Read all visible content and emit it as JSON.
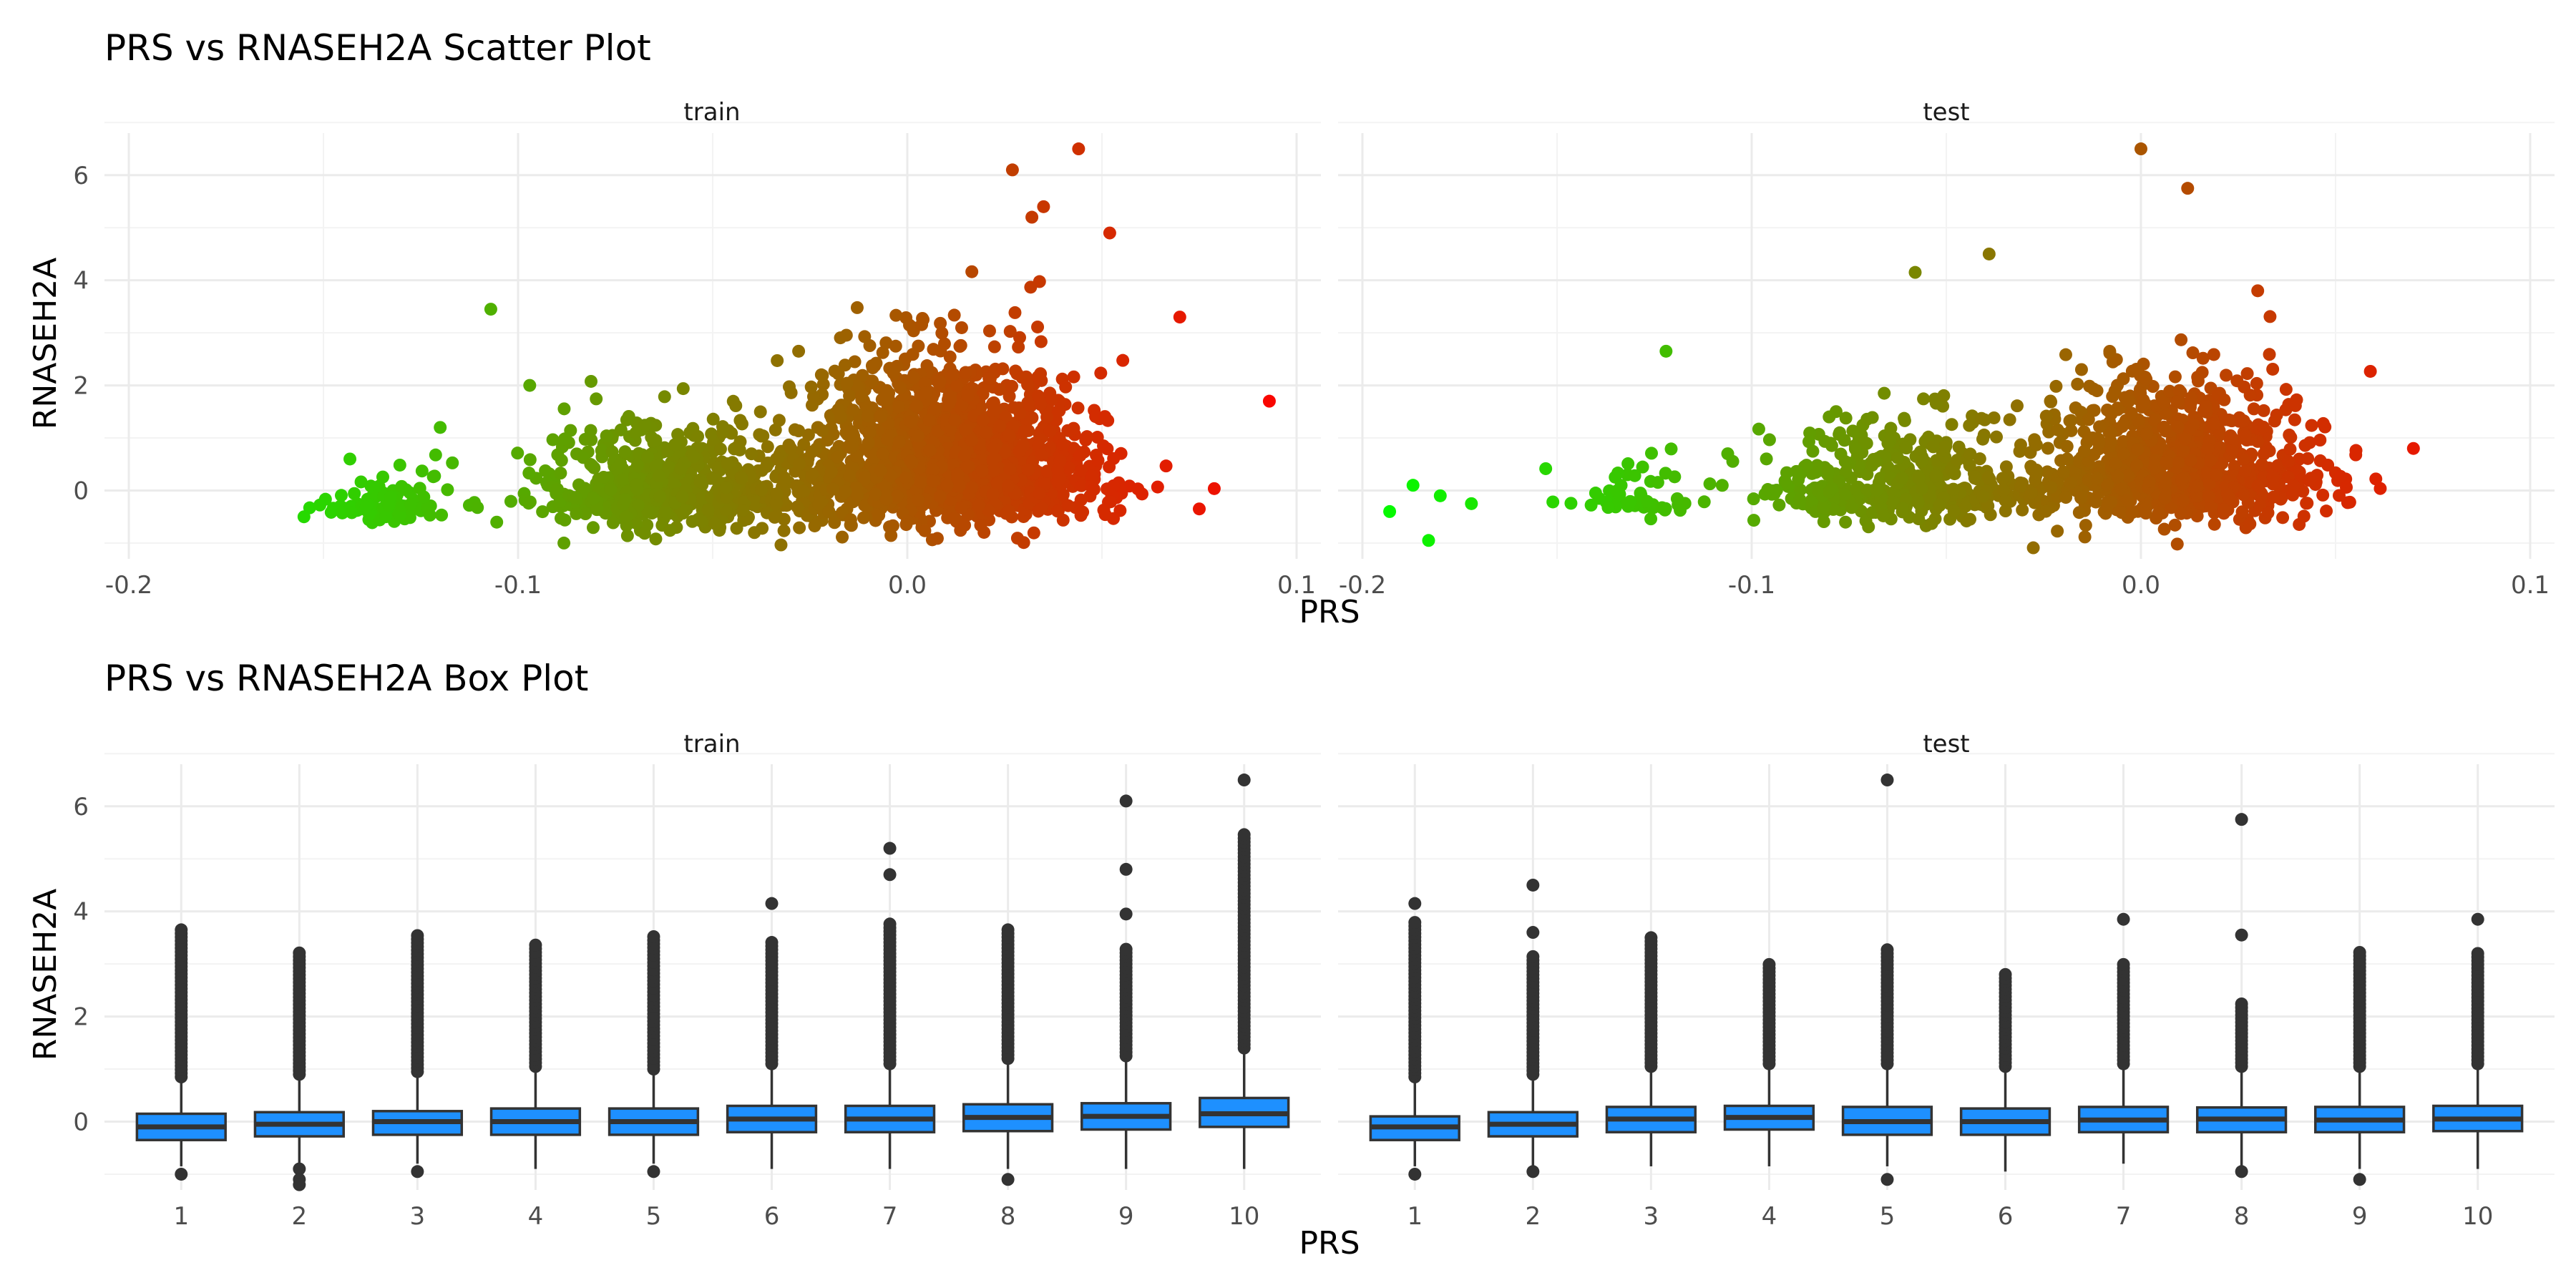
{
  "colors": {
    "low": "#00ff00",
    "high": "#ff0000",
    "box_fill": "#1e90ff",
    "box_line": "#333333",
    "outlier": "#333333"
  },
  "chart_data": [
    {
      "type": "scatter",
      "title": "PRS vs RNASEH2A Scatter Plot",
      "xlabel": "PRS",
      "ylabel": "RNASEH2A",
      "x_ticks": [
        "-0.2",
        "-0.1",
        "0.0",
        "0.1"
      ],
      "y_ticks": [
        "0",
        "2",
        "4",
        "6"
      ],
      "xlim": [
        -0.2,
        0.1
      ],
      "ylim": [
        -1.3,
        6.8
      ],
      "color_scale": {
        "from": "#00ff00",
        "to": "#ff0000",
        "mapped_to": "PRS"
      },
      "panels": [
        {
          "label": "train",
          "clusters": [
            {
              "x_center": -0.135,
              "x_spread": 0.009,
              "y_mean": -0.25,
              "y_sd": 0.25,
              "n": 90
            },
            {
              "x_center": -0.062,
              "x_spread": 0.017,
              "y_mean": -0.05,
              "y_sd": 0.45,
              "n": 700
            },
            {
              "x_center": 0.01,
              "x_spread": 0.018,
              "y_mean": 0.4,
              "y_sd": 0.75,
              "n": 1800
            }
          ],
          "highlights": [
            {
              "x": -0.107,
              "y": 3.45
            },
            {
              "x": -0.097,
              "y": 2.0
            },
            {
              "x": -0.12,
              "y": 1.2
            },
            {
              "x": 0.027,
              "y": 6.1
            },
            {
              "x": 0.044,
              "y": 6.5
            },
            {
              "x": 0.035,
              "y": 5.4
            },
            {
              "x": 0.032,
              "y": 5.2
            },
            {
              "x": 0.052,
              "y": 4.9
            },
            {
              "x": 0.07,
              "y": 3.3
            },
            {
              "x": 0.093,
              "y": 1.7
            },
            {
              "x": 0.075,
              "y": -0.35
            },
            {
              "x": -0.155,
              "y": -0.5
            }
          ]
        },
        {
          "label": "test",
          "clusters": [
            {
              "x_center": -0.13,
              "x_spread": 0.009,
              "y_mean": -0.2,
              "y_sd": 0.3,
              "n": 50
            },
            {
              "x_center": -0.062,
              "x_spread": 0.016,
              "y_mean": 0.05,
              "y_sd": 0.5,
              "n": 450
            },
            {
              "x_center": 0.008,
              "x_spread": 0.018,
              "y_mean": 0.3,
              "y_sd": 0.65,
              "n": 900
            }
          ],
          "highlights": [
            {
              "x": -0.193,
              "y": -0.4
            },
            {
              "x": -0.187,
              "y": 0.1
            },
            {
              "x": -0.18,
              "y": -0.1
            },
            {
              "x": -0.172,
              "y": -0.25
            },
            {
              "x": -0.183,
              "y": -0.95
            },
            {
              "x": 0.0,
              "y": 6.5
            },
            {
              "x": 0.012,
              "y": 5.75
            },
            {
              "x": -0.039,
              "y": 4.5
            },
            {
              "x": -0.058,
              "y": 4.15
            },
            {
              "x": -0.122,
              "y": 2.65
            },
            {
              "x": 0.07,
              "y": 0.8
            },
            {
              "x": 0.03,
              "y": 3.8
            }
          ]
        }
      ]
    },
    {
      "type": "box",
      "title": "PRS vs RNASEH2A Box Plot",
      "xlabel": "PRS",
      "ylabel": "RNASEH2A",
      "categories": [
        "1",
        "2",
        "3",
        "4",
        "5",
        "6",
        "7",
        "8",
        "9",
        "10"
      ],
      "y_ticks": [
        "0",
        "2",
        "4",
        "6"
      ],
      "ylim": [
        -1.3,
        6.8
      ],
      "panels": [
        {
          "label": "train",
          "boxes": [
            {
              "q1": -0.35,
              "median": -0.1,
              "q3": 0.15,
              "lower": -0.85,
              "upper": 0.75,
              "outlier_max": 3.7,
              "outliers": [
                -1.0
              ]
            },
            {
              "q1": -0.28,
              "median": -0.05,
              "q3": 0.18,
              "lower": -0.8,
              "upper": 0.8,
              "outlier_max": 3.25,
              "outliers": [
                -0.9,
                -1.1,
                -1.2
              ]
            },
            {
              "q1": -0.25,
              "median": 0.0,
              "q3": 0.2,
              "lower": -0.8,
              "upper": 0.85,
              "outlier_max": 3.6,
              "outliers": [
                -0.95
              ]
            },
            {
              "q1": -0.25,
              "median": 0.0,
              "q3": 0.25,
              "lower": -0.9,
              "upper": 0.95,
              "outlier_max": 3.4,
              "outliers": []
            },
            {
              "q1": -0.25,
              "median": 0.0,
              "q3": 0.25,
              "lower": -0.8,
              "upper": 0.9,
              "outlier_max": 3.55,
              "outliers": [
                -0.95
              ]
            },
            {
              "q1": -0.2,
              "median": 0.05,
              "q3": 0.3,
              "lower": -0.9,
              "upper": 1.0,
              "outlier_max": 3.45,
              "outliers": [
                4.15
              ]
            },
            {
              "q1": -0.2,
              "median": 0.05,
              "q3": 0.3,
              "lower": -0.9,
              "upper": 1.0,
              "outlier_max": 3.8,
              "outliers": [
                4.7,
                5.2
              ]
            },
            {
              "q1": -0.18,
              "median": 0.08,
              "q3": 0.33,
              "lower": -0.9,
              "upper": 1.1,
              "outlier_max": 3.7,
              "outliers": [
                -1.1
              ]
            },
            {
              "q1": -0.15,
              "median": 0.1,
              "q3": 0.35,
              "lower": -0.9,
              "upper": 1.15,
              "outlier_max": 3.3,
              "outliers": [
                3.95,
                4.8,
                6.1
              ]
            },
            {
              "q1": -0.1,
              "median": 0.15,
              "q3": 0.45,
              "lower": -0.9,
              "upper": 1.3,
              "outlier_max": 5.5,
              "outliers": [
                6.5
              ]
            }
          ]
        },
        {
          "label": "test",
          "boxes": [
            {
              "q1": -0.35,
              "median": -0.1,
              "q3": 0.1,
              "lower": -0.85,
              "upper": 0.75,
              "outlier_max": 3.85,
              "outliers": [
                -1.0,
                4.15
              ]
            },
            {
              "q1": -0.28,
              "median": -0.05,
              "q3": 0.18,
              "lower": -0.85,
              "upper": 0.8,
              "outlier_max": 3.2,
              "outliers": [
                -0.95,
                3.6,
                4.5
              ]
            },
            {
              "q1": -0.2,
              "median": 0.05,
              "q3": 0.28,
              "lower": -0.85,
              "upper": 0.95,
              "outlier_max": 3.55,
              "outliers": []
            },
            {
              "q1": -0.15,
              "median": 0.08,
              "q3": 0.3,
              "lower": -0.85,
              "upper": 1.0,
              "outlier_max": 3.0,
              "outliers": []
            },
            {
              "q1": -0.25,
              "median": 0.0,
              "q3": 0.28,
              "lower": -0.85,
              "upper": 1.0,
              "outlier_max": 3.3,
              "outliers": [
                -1.1,
                6.5
              ]
            },
            {
              "q1": -0.25,
              "median": 0.0,
              "q3": 0.25,
              "lower": -0.95,
              "upper": 0.95,
              "outlier_max": 2.8,
              "outliers": []
            },
            {
              "q1": -0.2,
              "median": 0.03,
              "q3": 0.28,
              "lower": -0.8,
              "upper": 1.0,
              "outlier_max": 3.05,
              "outliers": [
                3.85
              ]
            },
            {
              "q1": -0.2,
              "median": 0.05,
              "q3": 0.27,
              "lower": -0.85,
              "upper": 0.95,
              "outlier_max": 2.3,
              "outliers": [
                -0.95,
                3.55,
                5.75
              ]
            },
            {
              "q1": -0.2,
              "median": 0.03,
              "q3": 0.28,
              "lower": -0.9,
              "upper": 0.95,
              "outlier_max": 3.25,
              "outliers": [
                -1.1
              ]
            },
            {
              "q1": -0.18,
              "median": 0.05,
              "q3": 0.3,
              "lower": -0.9,
              "upper": 1.0,
              "outlier_max": 3.2,
              "outliers": [
                3.85
              ]
            }
          ]
        }
      ]
    }
  ]
}
